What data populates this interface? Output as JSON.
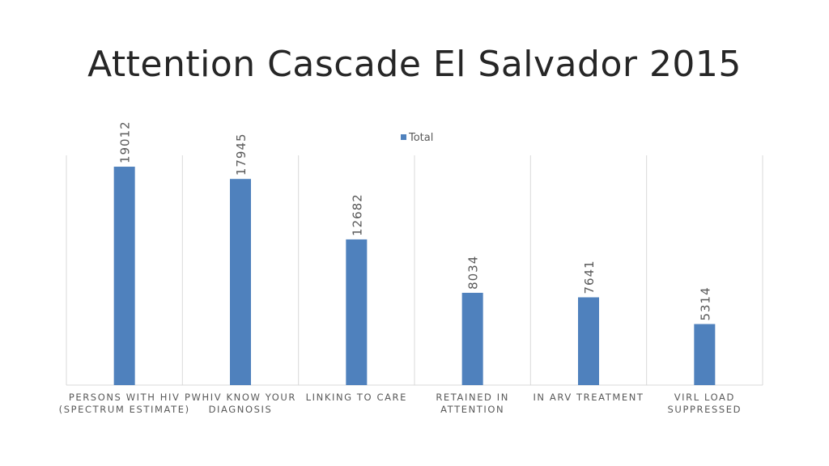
{
  "title": "Attention Cascade El Salvador 2015",
  "chart_data": {
    "type": "bar",
    "title": "Attention Cascade El Salvador 2015",
    "categories": [
      [
        "PERSONS WITH HIV",
        "(SPECTRUM ESTIMATE)"
      ],
      [
        "PWHIV KNOW YOUR",
        "DIAGNOSIS"
      ],
      [
        "LINKING TO CARE"
      ],
      [
        "RETAINED IN",
        "ATTENTION"
      ],
      [
        "IN ARV TREATMENT"
      ],
      [
        "VIRL LOAD",
        "SUPPRESSED"
      ]
    ],
    "series": [
      {
        "name": "Total",
        "values": [
          19012,
          17945,
          12682,
          8034,
          7641,
          5314
        ],
        "color": "#4F81BD"
      }
    ],
    "ylim": [
      0,
      20000
    ],
    "legend": "top-center",
    "grid": "vertical category separators",
    "data_labels": "rotated, above bars"
  }
}
